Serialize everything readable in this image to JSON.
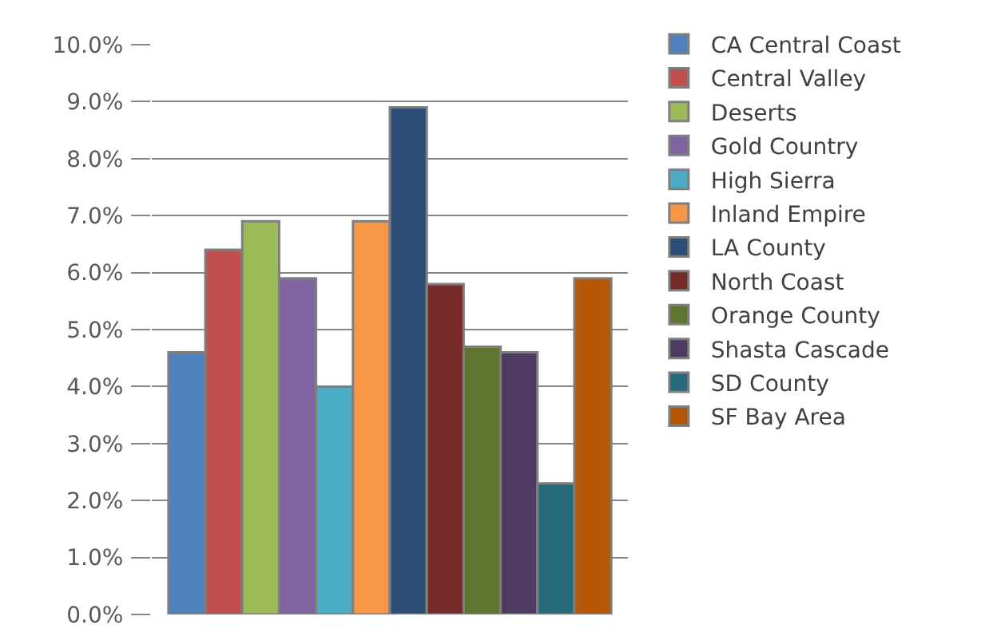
{
  "chart_data": {
    "type": "bar",
    "categories": [
      null
    ],
    "series": [
      {
        "name": "CA Central Coast",
        "color": "#4f81bd",
        "values": [
          4.6
        ]
      },
      {
        "name": "Central Valley",
        "color": "#c0504d",
        "values": [
          6.4
        ]
      },
      {
        "name": "Deserts",
        "color": "#9bbb59",
        "values": [
          6.9
        ]
      },
      {
        "name": "Gold Country",
        "color": "#8064a2",
        "values": [
          5.9
        ]
      },
      {
        "name": "High Sierra",
        "color": "#4bacc6",
        "values": [
          4.0
        ]
      },
      {
        "name": "Inland Empire",
        "color": "#f79646",
        "values": [
          6.9
        ]
      },
      {
        "name": "LA County",
        "color": "#2c4d75",
        "values": [
          8.9
        ]
      },
      {
        "name": "North Coast",
        "color": "#772c2a",
        "values": [
          5.8
        ]
      },
      {
        "name": "Orange County",
        "color": "#5f7530",
        "values": [
          4.7
        ]
      },
      {
        "name": "Shasta Cascade",
        "color": "#4d3b62",
        "values": [
          4.6
        ]
      },
      {
        "name": "SD County",
        "color": "#276a7c",
        "values": [
          2.3
        ]
      },
      {
        "name": "SF Bay Area",
        "color": "#b65708",
        "values": [
          5.9
        ]
      }
    ],
    "ylim": [
      0,
      10
    ],
    "yticks": [
      {
        "value": 0,
        "label": "0.0%"
      },
      {
        "value": 1,
        "label": "1.0%"
      },
      {
        "value": 2,
        "label": "2.0%"
      },
      {
        "value": 3,
        "label": "3.0%"
      },
      {
        "value": 4,
        "label": "4.0%"
      },
      {
        "value": 5,
        "label": "5.0%"
      },
      {
        "value": 6,
        "label": "6.0%"
      },
      {
        "value": 7,
        "label": "7.0%"
      },
      {
        "value": 8,
        "label": "8.0%"
      },
      {
        "value": 9,
        "label": "9.0%"
      },
      {
        "value": 10,
        "label": "10.0%"
      }
    ],
    "grid": "y",
    "legend": "right"
  }
}
